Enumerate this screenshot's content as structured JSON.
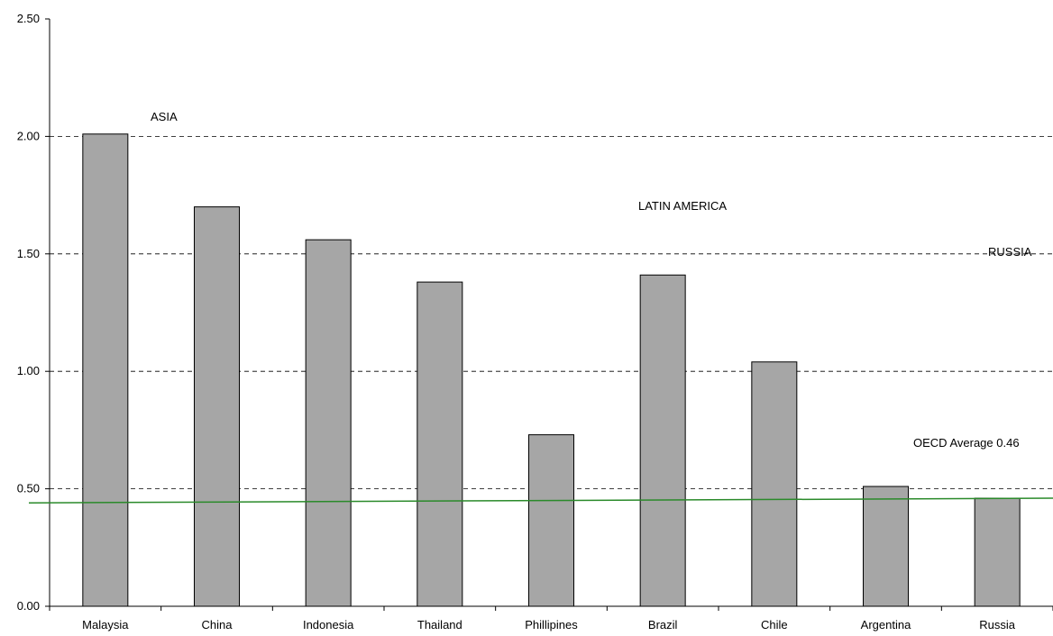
{
  "chart_data": {
    "type": "bar",
    "title": "",
    "xlabel": "",
    "ylabel": "",
    "categories": [
      "Malaysia",
      "China",
      "Indonesia",
      "Thailand",
      "Phillipines",
      "Brazil",
      "Chile",
      "Argentina",
      "Russia"
    ],
    "values": [
      2.01,
      1.7,
      1.56,
      1.38,
      0.73,
      1.41,
      1.04,
      0.51,
      0.46
    ],
    "ylim": [
      0,
      2.5
    ],
    "yticks": [
      0.0,
      0.5,
      1.0,
      1.5,
      2.0,
      2.5
    ],
    "ytick_labels": [
      "0.00",
      "0.50",
      "1.00",
      "1.50",
      "2.00",
      "2.50"
    ],
    "grid": "horizontal dashed at 0.5, 1.0, 1.5, 2.0",
    "bar_color": "#a6a6a6",
    "reference_line": {
      "label": "OECD Average 0.46",
      "y_start": 0.44,
      "y_end": 0.46,
      "color": "#2a8a2a"
    },
    "annotations": [
      {
        "text": "ASIA"
      },
      {
        "text": "LATIN AMERICA"
      },
      {
        "text": "RUSSIA"
      }
    ]
  }
}
